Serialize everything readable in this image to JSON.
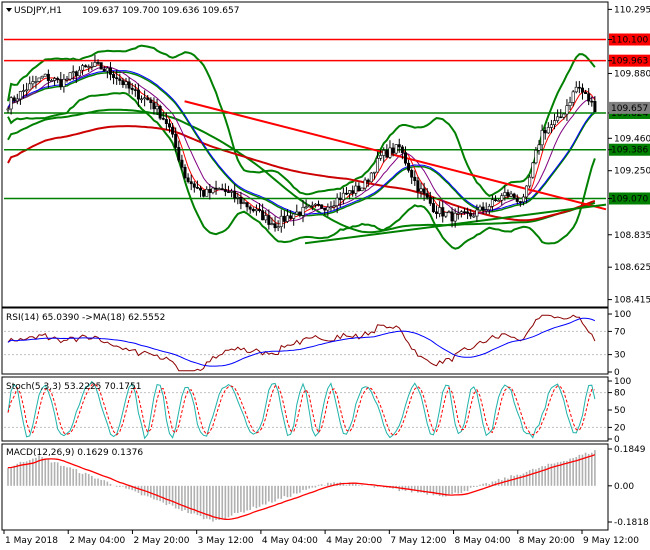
{
  "chart_data": [
    {
      "type": "candlestick",
      "panel": "price",
      "title": "USDJPY,H1",
      "ohlc_label": "109.637 109.700 109.636 109.657",
      "y_ticks": [
        110.295,
        110.1,
        109.963,
        109.88,
        109.624,
        109.46,
        109.386,
        109.25,
        109.07,
        108.835,
        108.625,
        108.415
      ],
      "ylim": [
        108.38,
        110.33
      ],
      "hlines": [
        {
          "value": 110.1,
          "label": "110.100",
          "color": "#ff0000"
        },
        {
          "value": 109.963,
          "label": "109.963",
          "color": "#ff0000"
        },
        {
          "value": 109.624,
          "label": "109.624",
          "color": "#008000"
        },
        {
          "value": 109.386,
          "label": "109.386",
          "color": "#008000"
        },
        {
          "value": 109.07,
          "label": "109.070",
          "color": "#008000"
        }
      ],
      "current_price": {
        "value": 109.657,
        "label": "109.657"
      },
      "trendlines": [
        {
          "color": "#ff0000",
          "points": [
            [
              0.3,
              109.7
            ],
            [
              1,
              109.0
            ]
          ]
        },
        {
          "color": "#008000",
          "points": [
            [
              0.5,
              108.78
            ],
            [
              1,
              109.03
            ]
          ]
        }
      ],
      "price_path": [
        109.68,
        109.78,
        109.86,
        109.82,
        109.9,
        109.93,
        109.87,
        109.76,
        109.7,
        109.55,
        109.2,
        109.1,
        109.13,
        109.06,
        108.98,
        108.9,
        108.97,
        109.0,
        109.03,
        109.1,
        109.15,
        109.35,
        109.4,
        109.15,
        109.0,
        108.95,
        108.96,
        109.02,
        109.1,
        109.05,
        109.5,
        109.58,
        109.8,
        109.66
      ]
    },
    {
      "type": "line",
      "panel": "rsi",
      "label": "RSI(14) 65.0390 ->MA(18) 62.5552",
      "y_ticks": [
        100,
        70,
        30,
        0
      ],
      "ylim": [
        0,
        100
      ]
    },
    {
      "type": "line",
      "panel": "stochastic",
      "label": "Stoch(5,3,3) 53.2225 70.1751",
      "y_ticks": [
        100,
        80,
        50,
        20,
        0
      ],
      "ylim": [
        0,
        100
      ]
    },
    {
      "type": "bar",
      "panel": "macd",
      "label": "MACD(12,26,9) 0.1629 0.1376",
      "y_ticks": [
        0.1849,
        0.0,
        -0.1818
      ],
      "tick_labels": [
        "0.1849",
        "0.00",
        "-0.1818"
      ],
      "ylim": [
        -0.1818,
        0.1849
      ]
    }
  ],
  "x_axis": {
    "labels": [
      "1 May 2018",
      "2 May 04:00",
      "2 May 20:00",
      "3 May 12:00",
      "4 May 04:00",
      "4 May 20:00",
      "7 May 12:00",
      "8 May 04:00",
      "8 May 20:00",
      "9 May 12:00"
    ]
  },
  "colors": {
    "bollinger": "#008000",
    "support_resistance_red": "#ff0000",
    "support_green": "#008000",
    "ma_fast": "#ff0000",
    "ma_slow": "#0000ff",
    "ma_signal": "#800080",
    "rsi_line": "#8b0000",
    "rsi_ma": "#0000ff",
    "stoch_main": "#20b2aa",
    "stoch_signal": "#ff0000",
    "macd_hist": "#b0b0b0",
    "macd_signal": "#ff0000",
    "current_price_box": "#808080"
  }
}
